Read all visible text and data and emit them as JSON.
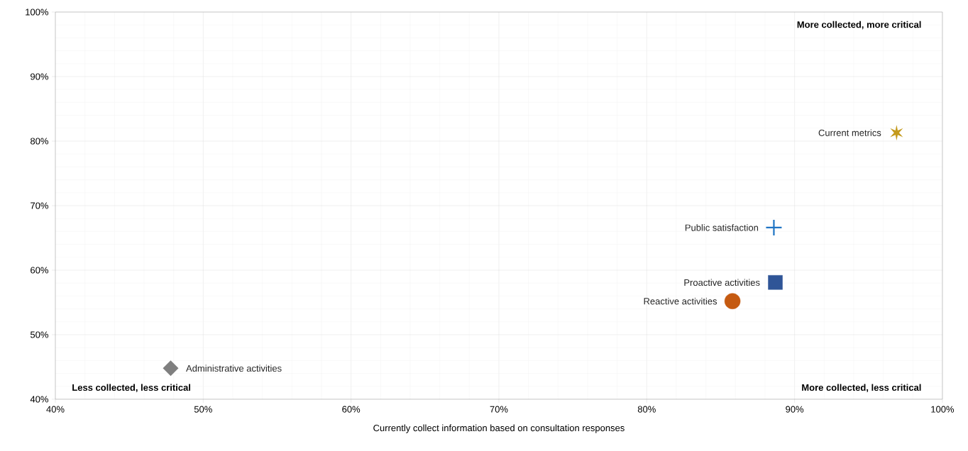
{
  "chart_data": {
    "type": "scatter",
    "xlabel": "Currently collect information based on consultation responses",
    "xlim": [
      40,
      100
    ],
    "ylim": [
      40,
      100
    ],
    "xticks": [
      {
        "value": 40,
        "label": "40%"
      },
      {
        "value": 50,
        "label": "50%"
      },
      {
        "value": 60,
        "label": "60%"
      },
      {
        "value": 70,
        "label": "70%"
      },
      {
        "value": 80,
        "label": "80%"
      },
      {
        "value": 90,
        "label": "90%"
      },
      {
        "value": 100,
        "label": "100%"
      }
    ],
    "yticks": [
      {
        "value": 40,
        "label": "40%"
      },
      {
        "value": 50,
        "label": "50%"
      },
      {
        "value": 60,
        "label": "60%"
      },
      {
        "value": 70,
        "label": "70%"
      },
      {
        "value": 80,
        "label": "80%"
      },
      {
        "value": 90,
        "label": "90%"
      },
      {
        "value": 100,
        "label": "100%"
      }
    ],
    "grid": true,
    "series": [
      {
        "name": "Current metrics",
        "color": "#c49a1c",
        "marker": "star",
        "x": [
          96.9
        ],
        "values": [
          81.3
        ]
      },
      {
        "name": "Public satisfaction",
        "color": "#1f74c4",
        "marker": "cross",
        "x": [
          88.6
        ],
        "values": [
          66.6
        ]
      },
      {
        "name": "Proactive activities",
        "color": "#2f5597",
        "marker": "square",
        "x": [
          88.7
        ],
        "values": [
          58.1
        ]
      },
      {
        "name": "Reactive activities",
        "color": "#c55a11",
        "marker": "circle",
        "x": [
          85.8
        ],
        "values": [
          55.2
        ]
      },
      {
        "name": "Administrative activities",
        "color": "#7f7f7f",
        "marker": "diamond",
        "x": [
          47.8
        ],
        "values": [
          44.8
        ]
      }
    ],
    "annotations": [
      "More collected, more critical",
      "Less collected, less critical",
      "More collected, less critical"
    ]
  }
}
